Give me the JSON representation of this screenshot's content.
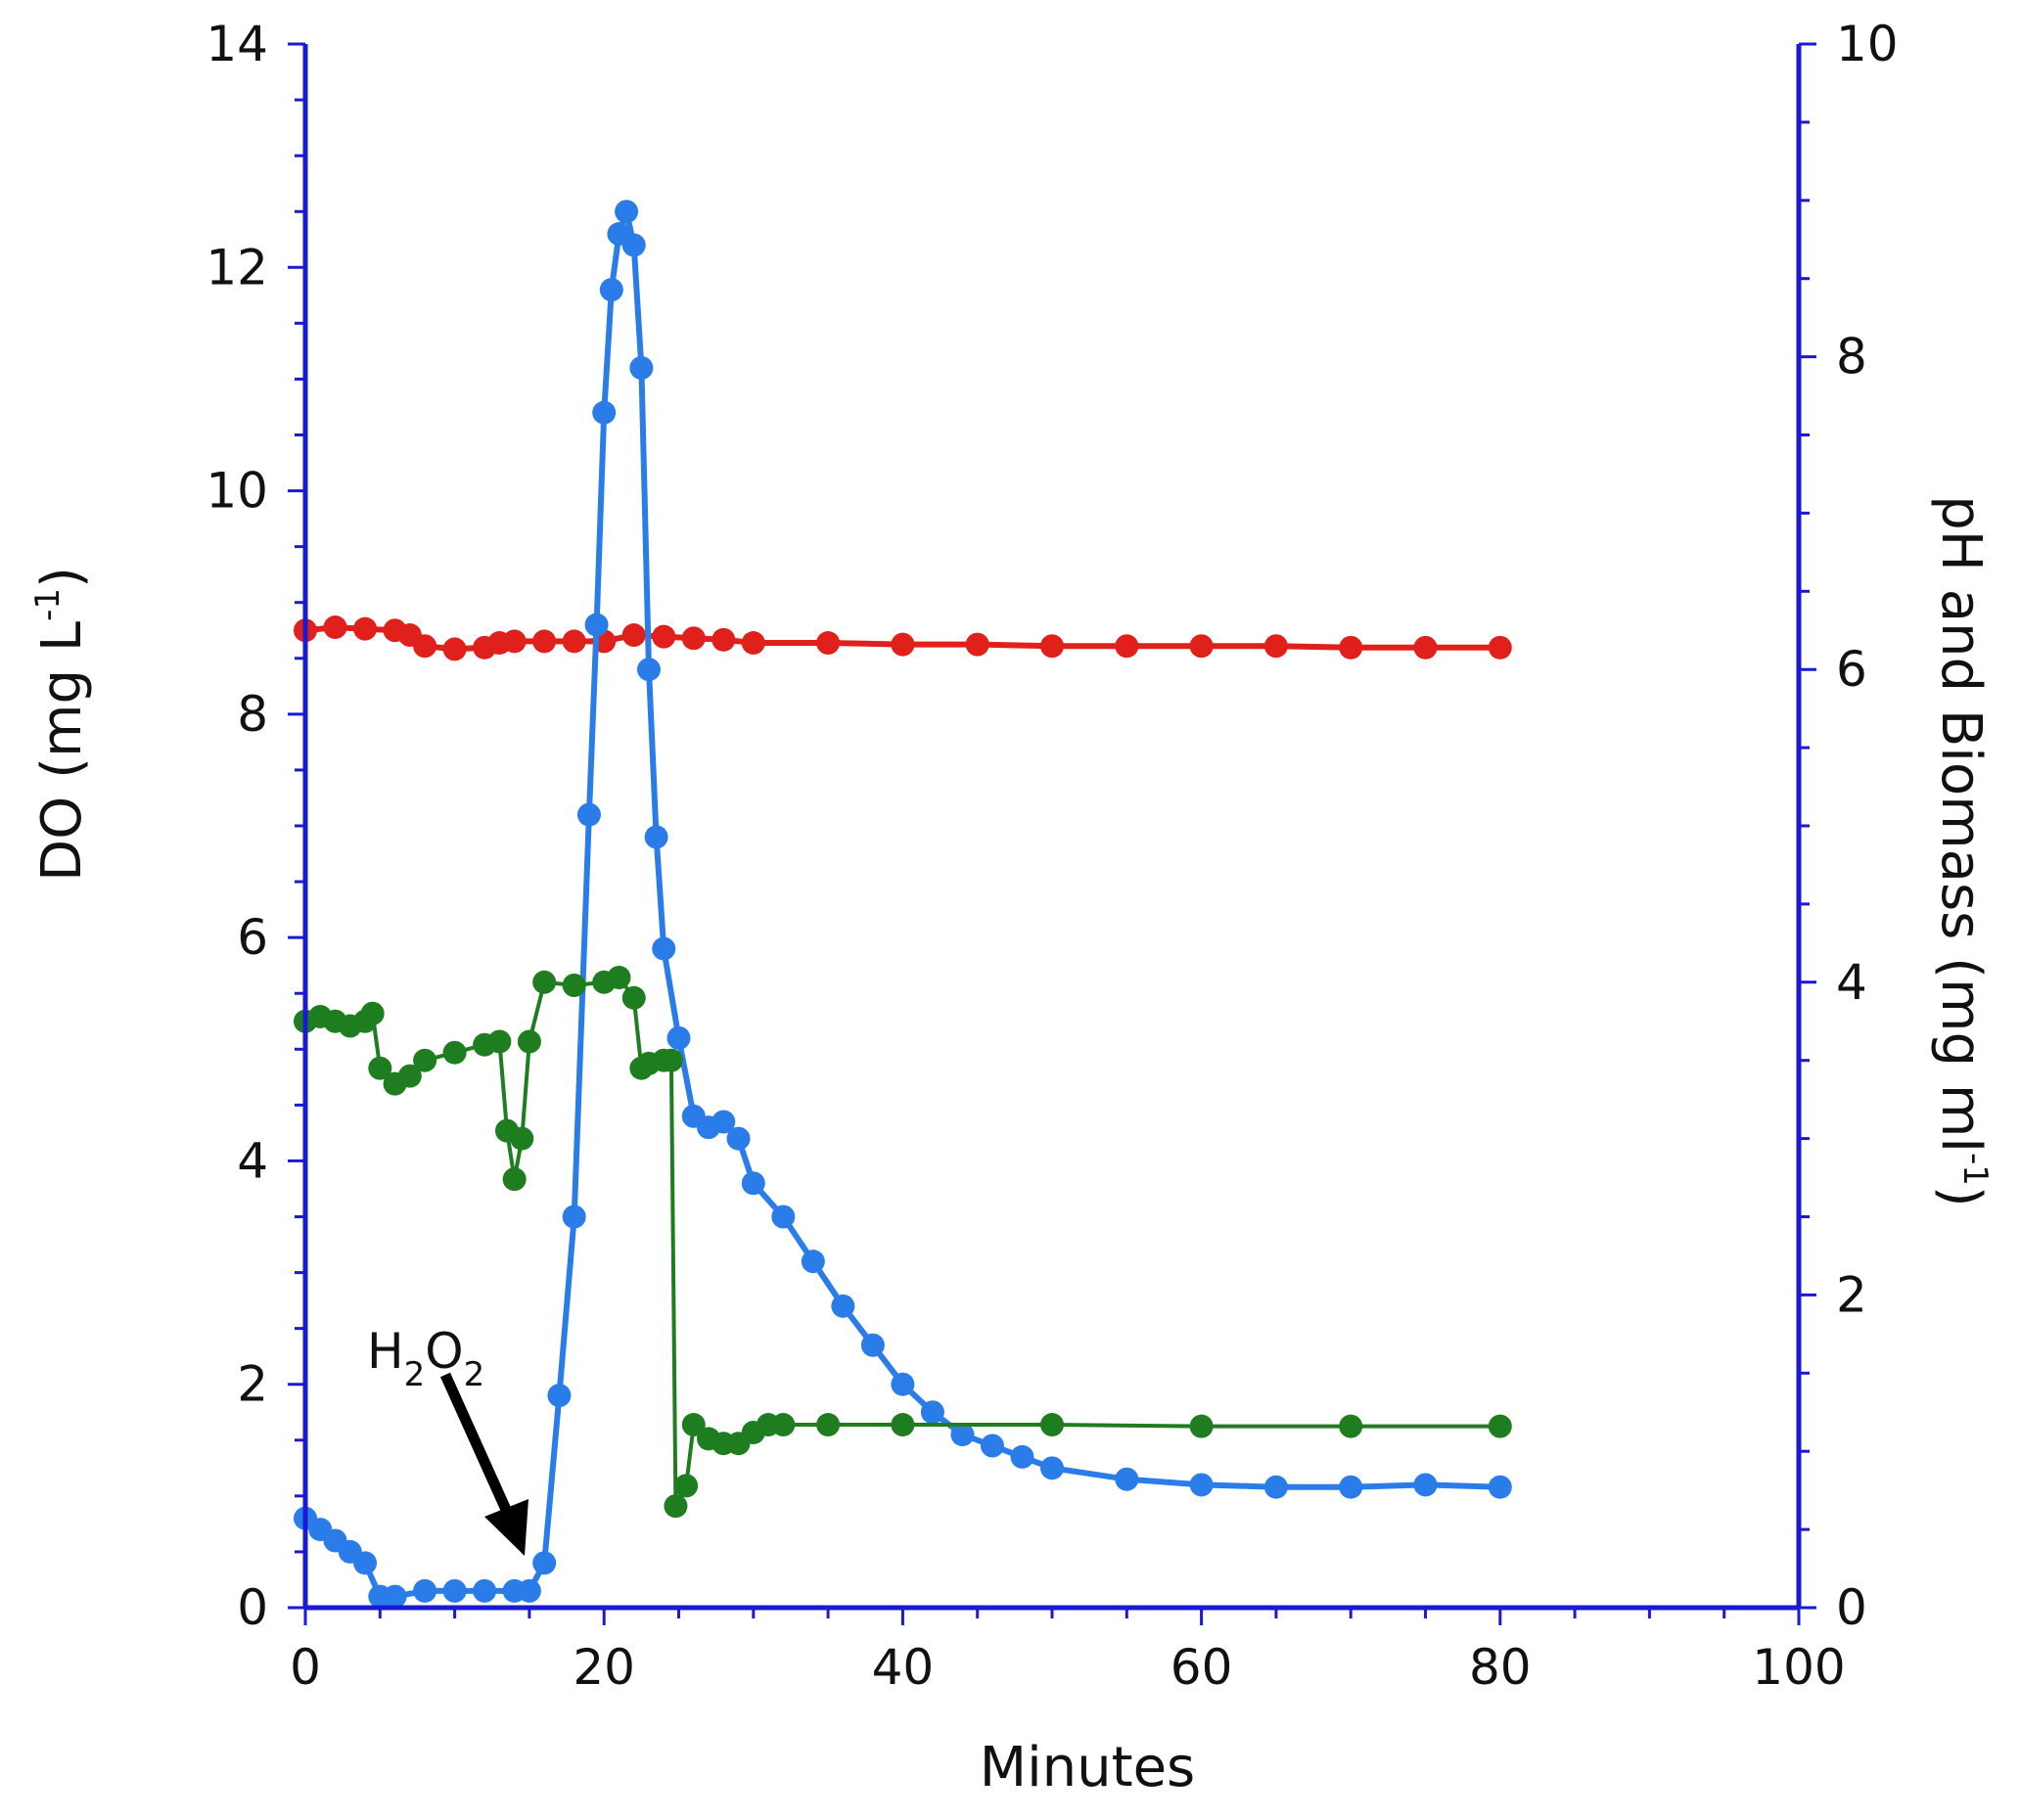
{
  "chart_data": {
    "type": "line",
    "title": "",
    "xlabel": "Minutes",
    "ylabel_left": "DO (mg L",
    "ylabel_left_sup": "-1",
    "ylabel_left_close": ")",
    "ylabel_right": "pH and Biomass (mg ml",
    "ylabel_right_sup": "-1",
    "ylabel_right_close": ")",
    "xlim": [
      0,
      100
    ],
    "ylim_left": [
      0,
      14
    ],
    "ylim_right": [
      0,
      10
    ],
    "x_ticks": [
      0,
      20,
      40,
      60,
      80,
      100
    ],
    "y_left_ticks": [
      0,
      2,
      4,
      6,
      8,
      10,
      12,
      14
    ],
    "y_right_ticks": [
      0,
      2,
      4,
      6,
      8,
      10
    ],
    "grid": false,
    "annotations": [
      {
        "text_main_1": "H",
        "sub_1": "2",
        "text_main_2": "O",
        "sub_2": "2",
        "arrow_to": {
          "x": 14.6,
          "y": 0.4
        }
      }
    ],
    "colors": {
      "axis": "#1a1ad6",
      "do_series": "#2a7de8",
      "ph_series": "#e0201b",
      "biomass_series": "#1e7d1e",
      "arrow": "#000000"
    },
    "series": [
      {
        "name": "DO",
        "axis": "left",
        "color": "#2a7de8",
        "x": [
          0,
          1,
          2,
          3,
          4,
          5,
          6,
          8,
          10,
          12,
          14,
          15,
          16,
          17,
          18,
          19,
          19.5,
          20,
          20.5,
          21,
          21.5,
          22,
          22.5,
          23,
          23.5,
          24,
          25,
          26,
          27,
          28,
          29,
          30,
          32,
          34,
          36,
          38,
          40,
          42,
          44,
          46,
          48,
          50,
          55,
          60,
          65,
          70,
          75,
          80
        ],
        "y": [
          0.8,
          0.7,
          0.6,
          0.5,
          0.4,
          0.1,
          0.1,
          0.15,
          0.15,
          0.15,
          0.15,
          0.15,
          0.4,
          1.9,
          3.5,
          7.1,
          8.8,
          10.7,
          11.8,
          12.3,
          12.5,
          12.2,
          11.1,
          8.4,
          6.9,
          5.9,
          5.1,
          4.4,
          4.3,
          4.35,
          4.2,
          3.8,
          3.5,
          3.1,
          2.7,
          2.35,
          2.0,
          1.75,
          1.55,
          1.45,
          1.35,
          1.25,
          1.15,
          1.1,
          1.08,
          1.08,
          1.1,
          1.08
        ]
      },
      {
        "name": "pH",
        "axis": "right",
        "color": "#e0201b",
        "x": [
          0,
          2,
          4,
          6,
          7,
          8,
          10,
          12,
          13,
          14,
          16,
          18,
          20,
          22,
          24,
          26,
          28,
          30,
          35,
          40,
          45,
          50,
          55,
          60,
          65,
          70,
          75,
          80
        ],
        "y": [
          6.25,
          6.27,
          6.26,
          6.25,
          6.22,
          6.15,
          6.13,
          6.14,
          6.17,
          6.18,
          6.18,
          6.18,
          6.18,
          6.22,
          6.21,
          6.2,
          6.19,
          6.17,
          6.17,
          6.16,
          6.16,
          6.15,
          6.15,
          6.15,
          6.15,
          6.14,
          6.14,
          6.14
        ]
      },
      {
        "name": "Biomass",
        "axis": "right",
        "color": "#1e7d1e",
        "x": [
          0,
          1,
          2,
          3,
          4,
          4.5,
          5,
          6,
          7,
          8,
          10,
          12,
          13,
          13.5,
          14,
          14.5,
          15,
          16,
          18,
          20,
          21,
          22,
          22.5,
          23,
          24,
          24.5,
          24.8,
          25.5,
          26,
          27,
          28,
          29,
          30,
          31,
          32,
          35,
          40,
          50,
          60,
          70,
          80
        ],
        "y": [
          3.75,
          3.78,
          3.75,
          3.72,
          3.75,
          3.8,
          3.45,
          3.35,
          3.4,
          3.5,
          3.55,
          3.6,
          3.62,
          3.05,
          2.74,
          3.0,
          3.62,
          4.0,
          3.98,
          4.0,
          4.03,
          3.9,
          3.45,
          3.48,
          3.5,
          3.5,
          0.65,
          0.78,
          1.17,
          1.08,
          1.05,
          1.05,
          1.12,
          1.17,
          1.17,
          1.17,
          1.17,
          1.17,
          1.16,
          1.16,
          1.16
        ]
      }
    ]
  }
}
